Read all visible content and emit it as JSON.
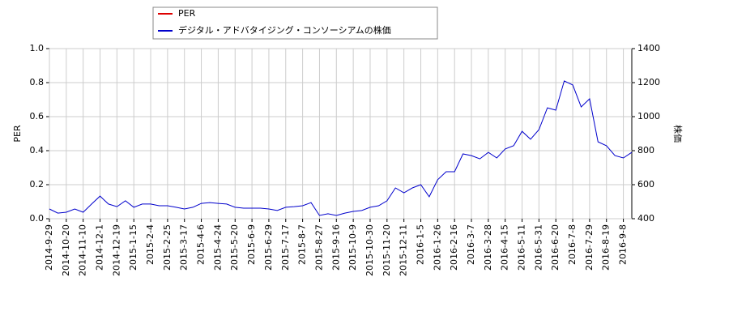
{
  "chart_data": {
    "type": "line",
    "categories": [
      "2014-9-29",
      null,
      "2014-10-20",
      null,
      "2014-11-10",
      null,
      "2014-12-1",
      null,
      "2014-12-19",
      null,
      "2015-1-15",
      null,
      "2015-2-4",
      null,
      "2015-2-25",
      null,
      "2015-3-17",
      null,
      "2015-4-6",
      null,
      "2015-4-24",
      null,
      "2015-5-20",
      null,
      "2015-6-9",
      null,
      "2015-6-29",
      null,
      "2015-7-17",
      null,
      "2015-8-7",
      null,
      "2015-8-27",
      null,
      "2015-9-16",
      null,
      "2015-10-9",
      null,
      "2015-10-30",
      null,
      "2015-11-20",
      null,
      "2015-12-11",
      null,
      "2016-1-5",
      null,
      "2016-1-26",
      null,
      "2016-2-16",
      null,
      "2016-3-7",
      null,
      "2016-3-28",
      null,
      "2016-4-15",
      null,
      "2016-5-11",
      null,
      "2016-5-31",
      null,
      "2016-6-20",
      null,
      "2016-7-8",
      null,
      "2016-7-29",
      null,
      "2016-8-19",
      null,
      "2016-9-8",
      null
    ],
    "series": [
      {
        "name": "PER",
        "color": "#dd0000",
        "values": [
          null,
          null,
          null,
          null,
          null,
          null,
          null,
          null,
          null,
          null,
          null,
          null,
          null,
          null,
          null,
          null,
          null,
          null,
          null,
          null,
          null,
          null,
          null,
          null,
          null,
          null,
          null,
          null,
          null,
          null,
          null,
          null,
          null,
          null,
          null,
          null,
          null,
          null,
          null,
          null,
          null,
          null,
          null,
          null,
          null,
          null,
          null,
          null,
          null,
          null,
          null,
          null,
          null,
          null,
          null,
          null,
          null,
          null,
          null,
          null,
          null,
          null,
          null,
          null,
          null,
          null,
          null,
          null,
          null,
          null
        ]
      },
      {
        "name": "デジタル・アドバタイジング・コンソーシアムの株価",
        "color": "#0000cc",
        "axis": "y2",
        "values": [
          457,
          433,
          438,
          457,
          438,
          486,
          533,
          486,
          471,
          505,
          467,
          486,
          486,
          476,
          476,
          467,
          457,
          467,
          490,
          495,
          490,
          486,
          467,
          462,
          462,
          462,
          457,
          448,
          467,
          471,
          476,
          495,
          419,
          429,
          419,
          433,
          443,
          448,
          467,
          476,
          505,
          581,
          552,
          581,
          600,
          529,
          629,
          676,
          676,
          781,
          771,
          752,
          790,
          757,
          810,
          829,
          914,
          867,
          924,
          1052,
          1038,
          1210,
          1186,
          1057,
          1105,
          852,
          829,
          771,
          757,
          790
        ]
      }
    ],
    "ylabel": "PER",
    "y2label": "株価",
    "ylim": [
      0,
      1.0
    ],
    "yticks": [
      {
        "value": 0,
        "label": "0.0"
      },
      {
        "value": 0.2,
        "label": "0.2"
      },
      {
        "value": 0.4,
        "label": "0.4"
      },
      {
        "value": 0.6,
        "label": "0.6"
      },
      {
        "value": 0.8,
        "label": "0.8"
      },
      {
        "value": 1.0,
        "label": "1.0"
      }
    ],
    "y2lim": [
      400,
      1400
    ],
    "y2ticks": [
      400,
      600,
      800,
      1000,
      1200,
      1400
    ],
    "grid": true
  }
}
